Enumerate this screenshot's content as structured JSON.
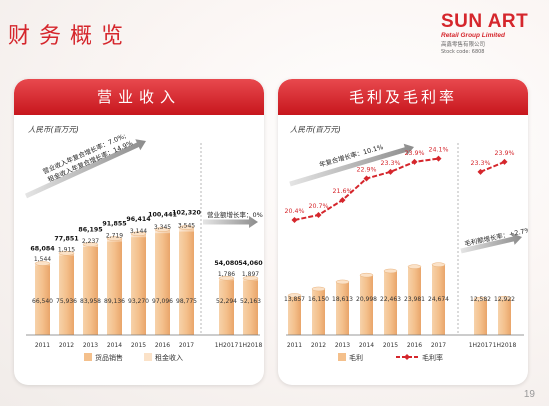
{
  "page": {
    "title": "财务概览",
    "page_number": "19",
    "logo": {
      "main": "SUN ART",
      "sub": "Retail Group Limited",
      "cn": "高鑫零售有限公司",
      "code": "Stock code: 6808"
    },
    "colors": {
      "accent": "#d5262c",
      "bar": "#f4c08c",
      "line": "#d5262c"
    }
  },
  "chart_data": [
    {
      "type": "bar",
      "title": "营业收入",
      "unit_label": "人民币(百万元)",
      "categories": [
        "2011",
        "2012",
        "2013",
        "2014",
        "2015",
        "2016",
        "2017",
        "1H2017",
        "1H2018"
      ],
      "series": [
        {
          "name": "货品销售",
          "values": [
            66540,
            75936,
            83958,
            89136,
            93270,
            97096,
            98775,
            52294,
            52163
          ]
        },
        {
          "name": "租金收入",
          "values": [
            1544,
            1915,
            2237,
            2719,
            3144,
            3345,
            3545,
            1786,
            1897
          ]
        }
      ],
      "totals": [
        68084,
        77851,
        86195,
        91855,
        96414,
        100441,
        102320,
        54080,
        54060
      ],
      "cagr_annotation": [
        "营业收入年复合增长率：7.0%;",
        "租金收入年复合增长率：14.9%"
      ],
      "growth_annotation": "营业额增长率：0%",
      "stacked": true,
      "grid": false,
      "legend": "bottom"
    },
    {
      "type": "bar",
      "title": "毛利及毛利率",
      "unit_label": "人民币(百万元)",
      "categories": [
        "2011",
        "2012",
        "2013",
        "2014",
        "2015",
        "2016",
        "2017",
        "1H2017",
        "1H2018"
      ],
      "series": [
        {
          "name": "毛利",
          "values": [
            13857,
            16150,
            18613,
            20998,
            22463,
            23981,
            24674,
            12582,
            12922
          ]
        },
        {
          "name": "毛利率",
          "type": "line",
          "values": [
            20.4,
            20.7,
            21.6,
            22.9,
            23.3,
            23.9,
            24.1,
            23.3,
            23.9
          ],
          "labels": [
            "20.4%",
            "20.7%",
            "21.6%",
            "22.9%",
            "23.3%",
            "23.9%",
            "24.1%",
            "23.3%",
            "23.9%"
          ]
        }
      ],
      "cagr_annotation": "年复合增长率：10.1%",
      "growth_annotation": "毛利额增长率：+2.7%",
      "grid": false,
      "legend": "bottom"
    }
  ]
}
